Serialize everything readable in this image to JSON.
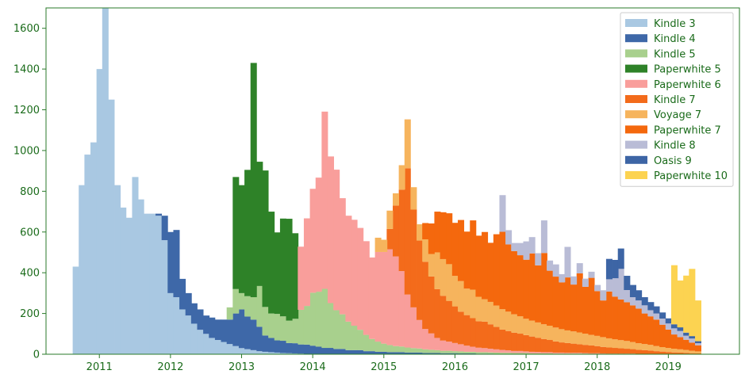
{
  "chart_data": {
    "type": "area",
    "step": true,
    "stacked": true,
    "x_unit": "year",
    "x": [
      2010.625,
      2010.71,
      2010.79,
      2010.875,
      2010.96,
      2011.04,
      2011.125,
      2011.21,
      2011.29,
      2011.375,
      2011.46,
      2011.54,
      2011.625,
      2011.71,
      2011.79,
      2011.875,
      2011.96,
      2012.04,
      2012.125,
      2012.21,
      2012.29,
      2012.375,
      2012.46,
      2012.54,
      2012.625,
      2012.71,
      2012.79,
      2012.875,
      2012.96,
      2013.04,
      2013.125,
      2013.21,
      2013.29,
      2013.375,
      2013.46,
      2013.54,
      2013.625,
      2013.71,
      2013.79,
      2013.875,
      2013.96,
      2014.04,
      2014.125,
      2014.21,
      2014.29,
      2014.375,
      2014.46,
      2014.54,
      2014.625,
      2014.71,
      2014.79,
      2014.875,
      2014.96,
      2015.04,
      2015.125,
      2015.21,
      2015.29,
      2015.375,
      2015.46,
      2015.54,
      2015.625,
      2015.71,
      2015.79,
      2015.875,
      2015.96,
      2016.04,
      2016.125,
      2016.21,
      2016.29,
      2016.375,
      2016.46,
      2016.54,
      2016.625,
      2016.71,
      2016.79,
      2016.875,
      2016.96,
      2017.04,
      2017.125,
      2017.21,
      2017.29,
      2017.375,
      2017.46,
      2017.54,
      2017.625,
      2017.71,
      2017.79,
      2017.875,
      2017.96,
      2018.04,
      2018.125,
      2018.21,
      2018.29,
      2018.375,
      2018.46,
      2018.54,
      2018.625,
      2018.71,
      2018.79,
      2018.875,
      2018.96,
      2019.04,
      2019.125,
      2019.21,
      2019.29,
      2019.375
    ],
    "series": [
      {
        "name": "Kindle 3",
        "color": "#a9c8e2",
        "values": [
          430,
          830,
          980,
          1040,
          1400,
          1700,
          1250,
          830,
          720,
          670,
          870,
          760,
          690,
          690,
          680,
          560,
          300,
          280,
          220,
          190,
          150,
          120,
          100,
          80,
          70,
          60,
          50,
          40,
          30,
          25,
          20,
          15,
          12,
          10,
          8,
          6,
          5,
          4,
          3,
          2,
          2,
          2,
          1,
          1,
          1,
          1,
          0,
          0,
          0,
          0,
          0,
          0,
          0,
          0,
          0,
          0,
          0,
          0,
          0,
          0,
          0,
          0,
          0,
          0,
          0,
          0,
          0,
          0,
          0,
          0,
          0,
          0,
          0,
          0,
          0,
          0,
          0,
          0,
          0,
          0,
          0,
          0,
          0,
          0,
          0,
          0,
          0,
          0,
          0,
          0,
          0,
          0,
          0,
          0,
          0,
          0,
          0,
          0,
          0,
          0,
          0,
          0,
          0,
          0,
          0,
          0
        ]
      },
      {
        "name": "Kindle 4",
        "color": "#3e68a8",
        "values": [
          0,
          0,
          0,
          0,
          0,
          0,
          0,
          0,
          0,
          0,
          0,
          0,
          0,
          0,
          10,
          120,
          300,
          330,
          150,
          110,
          100,
          100,
          90,
          100,
          100,
          110,
          120,
          160,
          190,
          160,
          150,
          120,
          80,
          70,
          60,
          60,
          50,
          50,
          45,
          45,
          40,
          35,
          30,
          30,
          25,
          25,
          20,
          20,
          20,
          15,
          15,
          12,
          12,
          10,
          10,
          10,
          8,
          8,
          8,
          6,
          6,
          6,
          5,
          5,
          5,
          4,
          4,
          4,
          3,
          3,
          3,
          2,
          2,
          2,
          2,
          2,
          2,
          1,
          1,
          1,
          1,
          1,
          1,
          1,
          1,
          1,
          1,
          1,
          1,
          1,
          0,
          0,
          0,
          0,
          0,
          0,
          0,
          0,
          0,
          0,
          0,
          0,
          0,
          0,
          0,
          0
        ]
      },
      {
        "name": "Kindle 5",
        "color": "#a8d08d",
        "values": [
          0,
          0,
          0,
          0,
          0,
          0,
          0,
          0,
          0,
          0,
          0,
          0,
          0,
          0,
          0,
          0,
          0,
          0,
          0,
          0,
          0,
          0,
          0,
          0,
          0,
          0,
          60,
          120,
          80,
          100,
          110,
          200,
          140,
          120,
          130,
          120,
          110,
          120,
          170,
          190,
          260,
          270,
          290,
          220,
          190,
          170,
          140,
          120,
          100,
          80,
          60,
          50,
          40,
          35,
          30,
          28,
          25,
          22,
          20,
          18,
          16,
          14,
          12,
          12,
          10,
          10,
          8,
          8,
          7,
          7,
          6,
          6,
          5,
          5,
          4,
          4,
          4,
          3,
          3,
          3,
          3,
          2,
          2,
          2,
          2,
          2,
          2,
          1,
          1,
          1,
          1,
          1,
          1,
          1,
          1,
          1,
          1,
          1,
          0,
          0,
          0,
          0,
          0,
          0,
          0,
          0
        ]
      },
      {
        "name": "Paperwhite 5",
        "color": "#2e8228",
        "values": [
          0,
          0,
          0,
          0,
          0,
          0,
          0,
          0,
          0,
          0,
          0,
          0,
          0,
          0,
          0,
          0,
          0,
          0,
          0,
          0,
          0,
          0,
          0,
          0,
          0,
          0,
          0,
          550,
          530,
          620,
          1150,
          610,
          670,
          500,
          400,
          480,
          500,
          420,
          0,
          0,
          0,
          0,
          0,
          0,
          0,
          0,
          0,
          0,
          0,
          0,
          0,
          0,
          0,
          0,
          0,
          0,
          0,
          0,
          0,
          0,
          0,
          0,
          0,
          0,
          0,
          0,
          0,
          0,
          0,
          0,
          0,
          0,
          0,
          0,
          0,
          0,
          0,
          0,
          0,
          0,
          0,
          0,
          0,
          0,
          0,
          0,
          0,
          0,
          0,
          0,
          0,
          0,
          0,
          0,
          0,
          0,
          0,
          0,
          0,
          0,
          0,
          0,
          0,
          0,
          0,
          0
        ]
      },
      {
        "name": "Paperwhite 6",
        "color": "#f99e9b",
        "values": [
          0,
          0,
          0,
          0,
          0,
          0,
          0,
          0,
          0,
          0,
          0,
          0,
          0,
          0,
          0,
          0,
          0,
          0,
          0,
          0,
          0,
          0,
          0,
          0,
          0,
          0,
          0,
          0,
          0,
          0,
          0,
          0,
          0,
          0,
          0,
          0,
          0,
          0,
          310,
          430,
          510,
          560,
          870,
          720,
          690,
          570,
          520,
          520,
          500,
          460,
          400,
          440,
          450,
          470,
          440,
          370,
          260,
          200,
          140,
          100,
          80,
          60,
          50,
          45,
          40,
          35,
          30,
          25,
          22,
          20,
          18,
          16,
          14,
          12,
          10,
          10,
          8,
          8,
          7,
          6,
          6,
          5,
          5,
          4,
          4,
          4,
          3,
          3,
          3,
          2,
          2,
          2,
          2,
          2,
          2,
          1,
          1,
          1,
          1,
          1,
          1,
          1,
          1,
          1,
          0,
          0
        ]
      },
      {
        "name": "Kindle 7",
        "color": "#f36b1b",
        "values": [
          0,
          0,
          0,
          0,
          0,
          0,
          0,
          0,
          0,
          0,
          0,
          0,
          0,
          0,
          0,
          0,
          0,
          0,
          0,
          0,
          0,
          0,
          0,
          0,
          0,
          0,
          0,
          0,
          0,
          0,
          0,
          0,
          0,
          0,
          0,
          0,
          0,
          0,
          0,
          0,
          0,
          0,
          0,
          0,
          0,
          0,
          0,
          0,
          0,
          0,
          0,
          0,
          0,
          100,
          250,
          400,
          620,
          480,
          390,
          330,
          280,
          240,
          220,
          200,
          180,
          160,
          150,
          140,
          130,
          130,
          120,
          110,
          100,
          95,
          90,
          85,
          80,
          75,
          70,
          65,
          60,
          55,
          50,
          48,
          45,
          42,
          40,
          38,
          35,
          32,
          30,
          28,
          26,
          24,
          22,
          20,
          18,
          16,
          14,
          12,
          10,
          8,
          7,
          6,
          5,
          4
        ]
      },
      {
        "name": "Voyage 7",
        "color": "#f6b45d",
        "values": [
          0,
          0,
          0,
          0,
          0,
          0,
          0,
          0,
          0,
          0,
          0,
          0,
          0,
          0,
          0,
          0,
          0,
          0,
          0,
          0,
          0,
          0,
          0,
          0,
          0,
          0,
          0,
          0,
          0,
          0,
          0,
          0,
          0,
          0,
          0,
          0,
          0,
          0,
          0,
          0,
          0,
          0,
          0,
          0,
          0,
          0,
          0,
          0,
          0,
          0,
          0,
          70,
          60,
          90,
          60,
          120,
          240,
          110,
          80,
          110,
          110,
          180,
          180,
          180,
          150,
          150,
          130,
          140,
          120,
          110,
          110,
          105,
          100,
          95,
          90,
          85,
          80,
          78,
          75,
          72,
          70,
          68,
          65,
          62,
          60,
          58,
          55,
          52,
          50,
          48,
          45,
          42,
          40,
          38,
          35,
          32,
          30,
          28,
          25,
          22,
          20,
          18,
          16,
          14,
          12,
          10
        ]
      },
      {
        "name": "Paperwhite 7",
        "color": "#f4680d",
        "values": [
          0,
          0,
          0,
          0,
          0,
          0,
          0,
          0,
          0,
          0,
          0,
          0,
          0,
          0,
          0,
          0,
          0,
          0,
          0,
          0,
          0,
          0,
          0,
          0,
          0,
          0,
          0,
          0,
          0,
          0,
          0,
          0,
          0,
          0,
          0,
          0,
          0,
          0,
          0,
          0,
          0,
          0,
          0,
          0,
          0,
          0,
          0,
          0,
          0,
          0,
          0,
          0,
          0,
          0,
          0,
          0,
          0,
          0,
          0,
          80,
          150,
          200,
          230,
          250,
          260,
          300,
          280,
          340,
          300,
          330,
          290,
          350,
          380,
          330,
          310,
          300,
          290,
          330,
          280,
          350,
          270,
          250,
          230,
          260,
          230,
          290,
          230,
          280,
          220,
          180,
          230,
          210,
          200,
          190,
          180,
          170,
          150,
          140,
          130,
          110,
          90,
          70,
          60,
          50,
          40,
          30
        ]
      },
      {
        "name": "Kindle 8",
        "color": "#b9bcd6",
        "values": [
          0,
          0,
          0,
          0,
          0,
          0,
          0,
          0,
          0,
          0,
          0,
          0,
          0,
          0,
          0,
          0,
          0,
          0,
          0,
          0,
          0,
          0,
          0,
          0,
          0,
          0,
          0,
          0,
          0,
          0,
          0,
          0,
          0,
          0,
          0,
          0,
          0,
          0,
          0,
          0,
          0,
          0,
          0,
          0,
          0,
          0,
          0,
          0,
          0,
          0,
          0,
          0,
          0,
          0,
          0,
          0,
          0,
          0,
          0,
          0,
          0,
          0,
          0,
          0,
          0,
          0,
          0,
          0,
          0,
          0,
          0,
          0,
          180,
          70,
          40,
          60,
          90,
          80,
          60,
          160,
          50,
          60,
          40,
          150,
          40,
          50,
          40,
          30,
          30,
          50,
          60,
          90,
          150,
          60,
          40,
          40,
          40,
          30,
          30,
          30,
          30,
          30,
          30,
          20,
          20,
          10
        ]
      },
      {
        "name": "Oasis 9",
        "color": "#3d65a5",
        "values": [
          0,
          0,
          0,
          0,
          0,
          0,
          0,
          0,
          0,
          0,
          0,
          0,
          0,
          0,
          0,
          0,
          0,
          0,
          0,
          0,
          0,
          0,
          0,
          0,
          0,
          0,
          0,
          0,
          0,
          0,
          0,
          0,
          0,
          0,
          0,
          0,
          0,
          0,
          0,
          0,
          0,
          0,
          0,
          0,
          0,
          0,
          0,
          0,
          0,
          0,
          0,
          0,
          0,
          0,
          0,
          0,
          0,
          0,
          0,
          0,
          0,
          0,
          0,
          0,
          0,
          0,
          0,
          0,
          0,
          0,
          0,
          0,
          0,
          0,
          0,
          0,
          0,
          0,
          0,
          0,
          0,
          0,
          0,
          0,
          0,
          0,
          0,
          0,
          0,
          0,
          100,
          90,
          100,
          70,
          60,
          50,
          40,
          40,
          35,
          30,
          25,
          20,
          18,
          15,
          12,
          10
        ]
      },
      {
        "name": "Paperwhite 10",
        "color": "#fcd351",
        "values": [
          0,
          0,
          0,
          0,
          0,
          0,
          0,
          0,
          0,
          0,
          0,
          0,
          0,
          0,
          0,
          0,
          0,
          0,
          0,
          0,
          0,
          0,
          0,
          0,
          0,
          0,
          0,
          0,
          0,
          0,
          0,
          0,
          0,
          0,
          0,
          0,
          0,
          0,
          0,
          0,
          0,
          0,
          0,
          0,
          0,
          0,
          0,
          0,
          0,
          0,
          0,
          0,
          0,
          0,
          0,
          0,
          0,
          0,
          0,
          0,
          0,
          0,
          0,
          0,
          0,
          0,
          0,
          0,
          0,
          0,
          0,
          0,
          0,
          0,
          0,
          0,
          0,
          0,
          0,
          0,
          0,
          0,
          0,
          0,
          0,
          0,
          0,
          0,
          0,
          0,
          0,
          0,
          0,
          0,
          0,
          0,
          0,
          0,
          0,
          0,
          0,
          290,
          230,
          280,
          330,
          200
        ]
      }
    ],
    "xlim": [
      2010.25,
      2020.0
    ],
    "ylim": [
      0,
      1700
    ],
    "xticks": [
      2011,
      2012,
      2013,
      2014,
      2015,
      2016,
      2017,
      2018,
      2019
    ],
    "yticks": [
      0,
      200,
      400,
      600,
      800,
      1000,
      1200,
      1400,
      1600
    ],
    "title": "",
    "xlabel": "",
    "ylabel": "",
    "grid": false,
    "legend_position": "top-right"
  }
}
